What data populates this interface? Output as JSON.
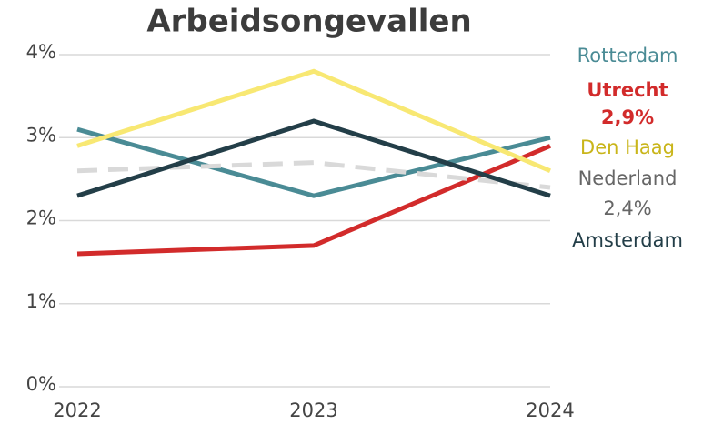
{
  "chart_data": {
    "type": "line",
    "title": "Arbeidsongevallen",
    "x": [
      2022,
      2023,
      2024
    ],
    "xlim": [
      2022,
      2024
    ],
    "xticks": [
      2022,
      2023,
      2024
    ],
    "ylim": [
      0,
      4
    ],
    "yticks": [
      {
        "value": 0,
        "label": "0%"
      },
      {
        "value": 1,
        "label": "1%"
      },
      {
        "value": 2,
        "label": "2%"
      },
      {
        "value": 3,
        "label": "3%"
      },
      {
        "value": 4,
        "label": "4%"
      }
    ],
    "grid": true,
    "series": [
      {
        "name": "Rotterdam",
        "color": "#4a8b95",
        "label_color": "#4a8b95",
        "values": [
          3.1,
          2.3,
          3.0
        ]
      },
      {
        "name": "Utrecht",
        "color": "#d22b2b",
        "label_color": "#d22b2b",
        "values": [
          1.6,
          1.7,
          2.9
        ],
        "value_labels": [
          null,
          null,
          "2,9%"
        ],
        "bold": true
      },
      {
        "name": "Den Haag",
        "color": "#f8e873",
        "label_color": "#c9b51a",
        "values": [
          2.9,
          3.8,
          2.6
        ]
      },
      {
        "name": "Nederland",
        "color": "#d9d9d9",
        "label_color": "#666666",
        "values": [
          2.6,
          2.7,
          2.4
        ],
        "value_labels": [
          null,
          null,
          "2,4%"
        ],
        "dashed": true
      },
      {
        "name": "Amsterdam",
        "color": "#233e48",
        "label_color": "#233e48",
        "values": [
          2.3,
          3.2,
          2.3
        ]
      }
    ]
  }
}
